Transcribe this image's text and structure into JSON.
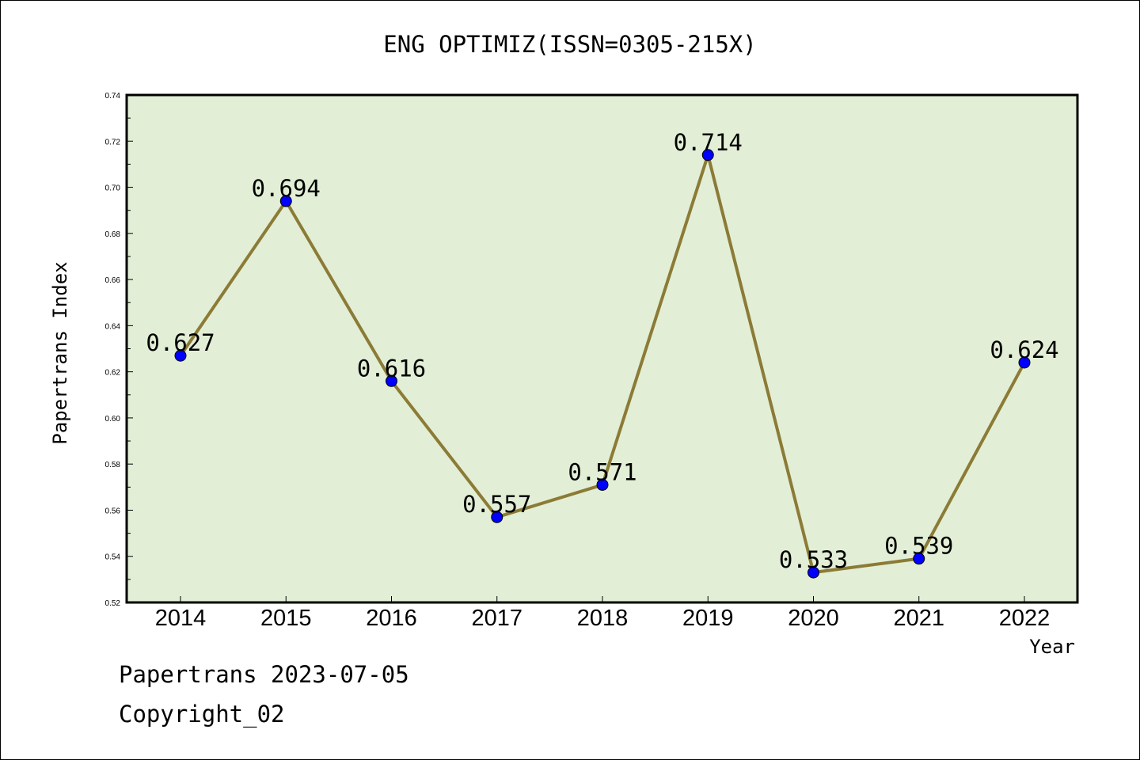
{
  "chart_data": {
    "type": "line",
    "title": "ENG OPTIMIZ(ISSN=0305-215X)",
    "xlabel": "Year",
    "ylabel": "Papertrans Index",
    "x": [
      "2014",
      "2015",
      "2016",
      "2017",
      "2018",
      "2019",
      "2020",
      "2021",
      "2022"
    ],
    "series": [
      {
        "values": [
          0.627,
          0.694,
          0.616,
          0.557,
          0.571,
          0.714,
          0.533,
          0.539,
          0.624
        ],
        "data_labels": [
          "0.627",
          "0.694",
          "0.616",
          "0.557",
          "0.571",
          "0.714",
          "0.533",
          "0.539",
          "0.624"
        ]
      }
    ],
    "ylim": [
      0.52,
      0.74
    ],
    "yticks": [
      "0.52",
      "0.54",
      "0.56",
      "0.58",
      "0.60",
      "0.62",
      "0.64",
      "0.66",
      "0.68",
      "0.70",
      "0.72",
      "0.74"
    ],
    "grid": false,
    "legend": "none",
    "colors": {
      "plot_background": "#e2efd6",
      "line": "#8c7b36",
      "marker": "#0000ff"
    }
  },
  "footer": {
    "source": "Papertrans 2023-07-05",
    "copyright": "Copyright_02"
  }
}
